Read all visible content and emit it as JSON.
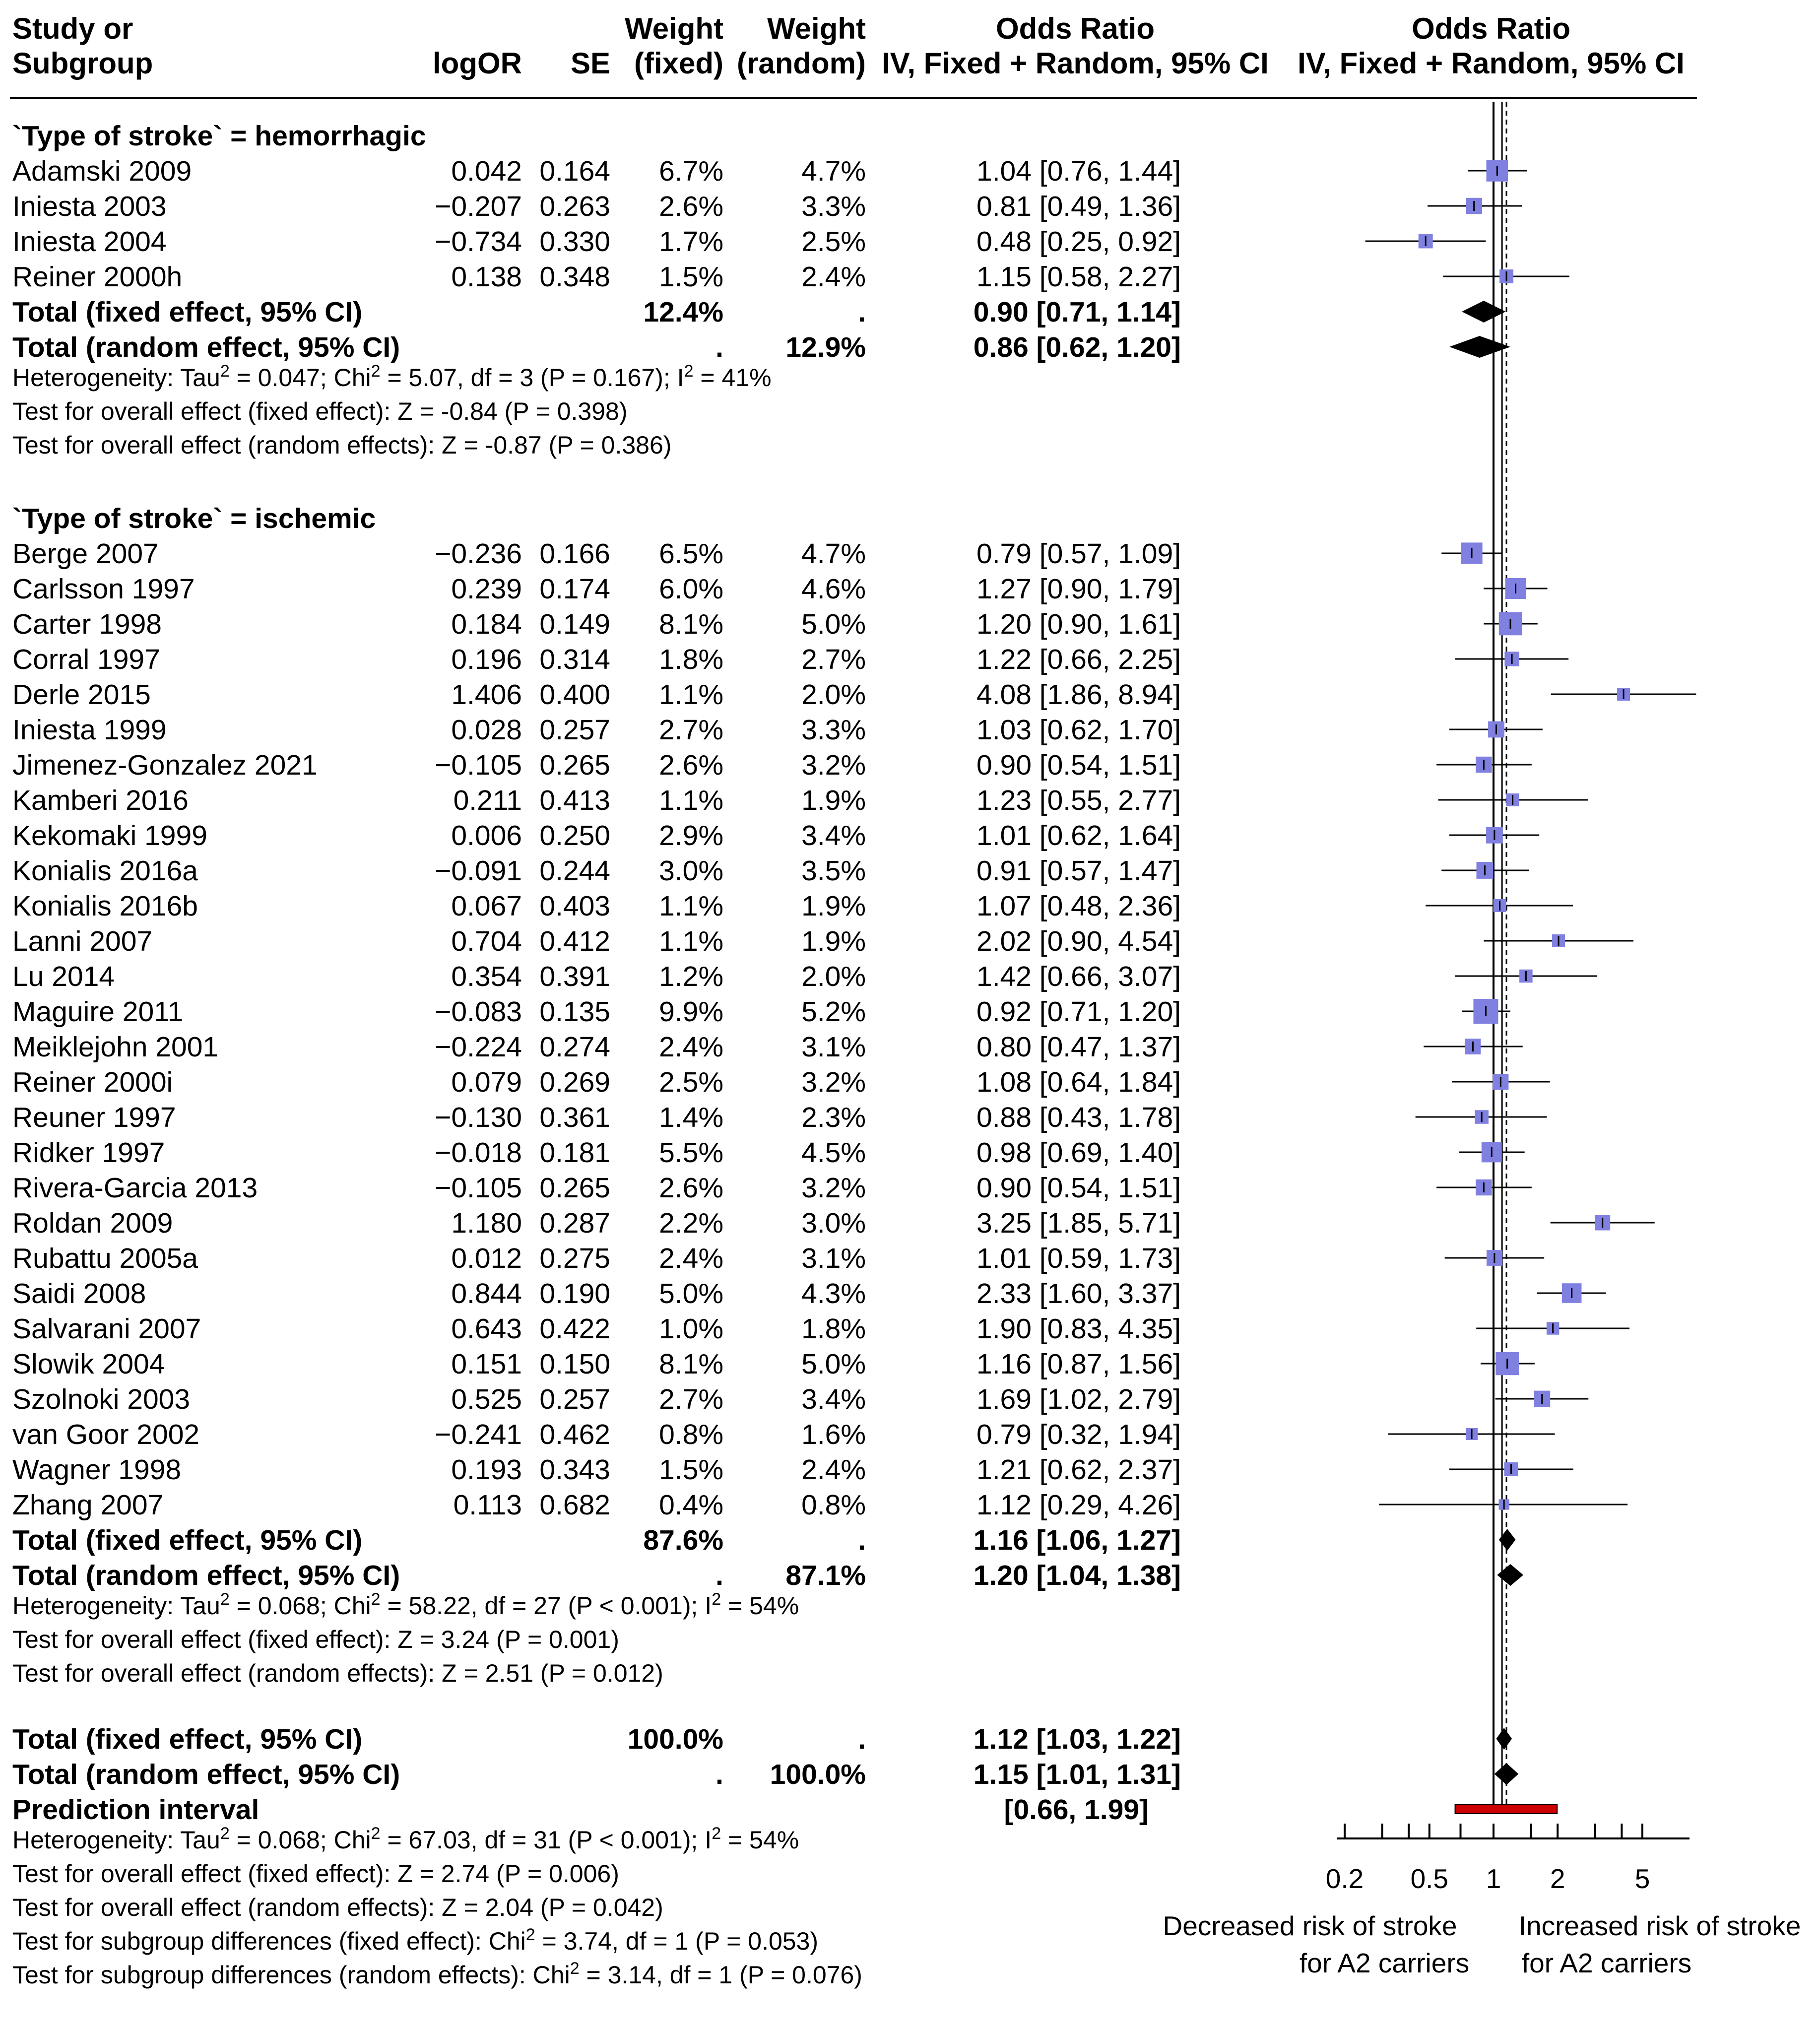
{
  "chart_data": {
    "type": "forest",
    "headers": {
      "study": [
        "Study or",
        "Subgroup"
      ],
      "logor": "logOR",
      "se": "SE",
      "wfixed": [
        "Weight",
        "(fixed)"
      ],
      "wrandom": [
        "Weight",
        "(random)"
      ],
      "or": [
        "Odds Ratio",
        "IV, Fixed + Random, 95% CI"
      ],
      "plot": [
        "Odds Ratio",
        "IV, Fixed + Random, 95% CI"
      ]
    },
    "subgroups": [
      {
        "title": "`Type of stroke` = hemorrhagic",
        "studies": [
          {
            "name": "Adamski 2009",
            "logor": "0.042",
            "se": "0.164",
            "wfixed": "6.7%",
            "wrandom": "4.7%",
            "ci": "1.04 [0.76, 1.44]",
            "or": 1.04,
            "lo": 0.76,
            "hi": 1.44,
            "w": 6.7
          },
          {
            "name": "Iniesta 2003",
            "logor": "−0.207",
            "se": "0.263",
            "wfixed": "2.6%",
            "wrandom": "3.3%",
            "ci": "0.81 [0.49, 1.36]",
            "or": 0.81,
            "lo": 0.49,
            "hi": 1.36,
            "w": 2.6
          },
          {
            "name": "Iniesta 2004",
            "logor": "−0.734",
            "se": "0.330",
            "wfixed": "1.7%",
            "wrandom": "2.5%",
            "ci": "0.48 [0.25, 0.92]",
            "or": 0.48,
            "lo": 0.25,
            "hi": 0.92,
            "w": 1.7
          },
          {
            "name": "Reiner 2000h",
            "logor": "0.138",
            "se": "0.348",
            "wfixed": "1.5%",
            "wrandom": "2.4%",
            "ci": "1.15 [0.58, 2.27]",
            "or": 1.15,
            "lo": 0.58,
            "hi": 2.27,
            "w": 1.5
          }
        ],
        "fixed": {
          "label": "Total (fixed effect, 95% CI)",
          "wfixed": "12.4%",
          "wrandom": ".",
          "ci": "0.90 [0.71, 1.14]",
          "or": 0.9,
          "lo": 0.71,
          "hi": 1.14
        },
        "random": {
          "label": "Total (random effect, 95% CI)",
          "wfixed": ".",
          "wrandom": "12.9%",
          "ci": "0.86 [0.62, 1.20]",
          "or": 0.86,
          "lo": 0.62,
          "hi": 1.2
        },
        "stats": [
          {
            "parts": [
              [
                "Heterogeneity: Tau",
                false
              ],
              [
                "2",
                true
              ],
              [
                " = 0.047; Chi",
                false
              ],
              [
                "2",
                true
              ],
              [
                " = 5.07, df = 3 (P = 0.167); I",
                false
              ],
              [
                "2",
                true
              ],
              [
                " = 41%",
                false
              ]
            ]
          },
          {
            "parts": [
              [
                "Test for overall effect (fixed effect): Z = -0.84 (P = 0.398)",
                false
              ]
            ]
          },
          {
            "parts": [
              [
                "Test for overall effect (random effects): Z = -0.87 (P = 0.386)",
                false
              ]
            ]
          }
        ]
      },
      {
        "title": "`Type of stroke` = ischemic",
        "studies": [
          {
            "name": "Berge 2007",
            "logor": "−0.236",
            "se": "0.166",
            "wfixed": "6.5%",
            "wrandom": "4.7%",
            "ci": "0.79 [0.57, 1.09]",
            "or": 0.79,
            "lo": 0.57,
            "hi": 1.09,
            "w": 6.5
          },
          {
            "name": "Carlsson 1997",
            "logor": "0.239",
            "se": "0.174",
            "wfixed": "6.0%",
            "wrandom": "4.6%",
            "ci": "1.27 [0.90, 1.79]",
            "or": 1.27,
            "lo": 0.9,
            "hi": 1.79,
            "w": 6.0
          },
          {
            "name": "Carter 1998",
            "logor": "0.184",
            "se": "0.149",
            "wfixed": "8.1%",
            "wrandom": "5.0%",
            "ci": "1.20 [0.90, 1.61]",
            "or": 1.2,
            "lo": 0.9,
            "hi": 1.61,
            "w": 8.1
          },
          {
            "name": "Corral 1997",
            "logor": "0.196",
            "se": "0.314",
            "wfixed": "1.8%",
            "wrandom": "2.7%",
            "ci": "1.22 [0.66, 2.25]",
            "or": 1.22,
            "lo": 0.66,
            "hi": 2.25,
            "w": 1.8
          },
          {
            "name": "Derle 2015",
            "logor": "1.406",
            "se": "0.400",
            "wfixed": "1.1%",
            "wrandom": "2.0%",
            "ci": "4.08 [1.86, 8.94]",
            "or": 4.08,
            "lo": 1.86,
            "hi": 8.94,
            "w": 1.1
          },
          {
            "name": "Iniesta 1999",
            "logor": "0.028",
            "se": "0.257",
            "wfixed": "2.7%",
            "wrandom": "3.3%",
            "ci": "1.03 [0.62, 1.70]",
            "or": 1.03,
            "lo": 0.62,
            "hi": 1.7,
            "w": 2.7
          },
          {
            "name": "Jimenez-Gonzalez 2021",
            "logor": "−0.105",
            "se": "0.265",
            "wfixed": "2.6%",
            "wrandom": "3.2%",
            "ci": "0.90 [0.54, 1.51]",
            "or": 0.9,
            "lo": 0.54,
            "hi": 1.51,
            "w": 2.6
          },
          {
            "name": "Kamberi 2016",
            "logor": "0.211",
            "se": "0.413",
            "wfixed": "1.1%",
            "wrandom": "1.9%",
            "ci": "1.23 [0.55, 2.77]",
            "or": 1.23,
            "lo": 0.55,
            "hi": 2.77,
            "w": 1.1
          },
          {
            "name": "Kekomaki 1999",
            "logor": "0.006",
            "se": "0.250",
            "wfixed": "2.9%",
            "wrandom": "3.4%",
            "ci": "1.01 [0.62, 1.64]",
            "or": 1.01,
            "lo": 0.62,
            "hi": 1.64,
            "w": 2.9
          },
          {
            "name": "Konialis 2016a",
            "logor": "−0.091",
            "se": "0.244",
            "wfixed": "3.0%",
            "wrandom": "3.5%",
            "ci": "0.91 [0.57, 1.47]",
            "or": 0.91,
            "lo": 0.57,
            "hi": 1.47,
            "w": 3.0
          },
          {
            "name": "Konialis 2016b",
            "logor": "0.067",
            "se": "0.403",
            "wfixed": "1.1%",
            "wrandom": "1.9%",
            "ci": "1.07 [0.48, 2.36]",
            "or": 1.07,
            "lo": 0.48,
            "hi": 2.36,
            "w": 1.1
          },
          {
            "name": "Lanni 2007",
            "logor": "0.704",
            "se": "0.412",
            "wfixed": "1.1%",
            "wrandom": "1.9%",
            "ci": "2.02 [0.90, 4.54]",
            "or": 2.02,
            "lo": 0.9,
            "hi": 4.54,
            "w": 1.1
          },
          {
            "name": "Lu 2014",
            "logor": "0.354",
            "se": "0.391",
            "wfixed": "1.2%",
            "wrandom": "2.0%",
            "ci": "1.42 [0.66, 3.07]",
            "or": 1.42,
            "lo": 0.66,
            "hi": 3.07,
            "w": 1.2
          },
          {
            "name": "Maguire 2011",
            "logor": "−0.083",
            "se": "0.135",
            "wfixed": "9.9%",
            "wrandom": "5.2%",
            "ci": "0.92 [0.71, 1.20]",
            "or": 0.92,
            "lo": 0.71,
            "hi": 1.2,
            "w": 9.9
          },
          {
            "name": "Meiklejohn 2001",
            "logor": "−0.224",
            "se": "0.274",
            "wfixed": "2.4%",
            "wrandom": "3.1%",
            "ci": "0.80 [0.47, 1.37]",
            "or": 0.8,
            "lo": 0.47,
            "hi": 1.37,
            "w": 2.4
          },
          {
            "name": "Reiner 2000i",
            "logor": "0.079",
            "se": "0.269",
            "wfixed": "2.5%",
            "wrandom": "3.2%",
            "ci": "1.08 [0.64, 1.84]",
            "or": 1.08,
            "lo": 0.64,
            "hi": 1.84,
            "w": 2.5
          },
          {
            "name": "Reuner 1997",
            "logor": "−0.130",
            "se": "0.361",
            "wfixed": "1.4%",
            "wrandom": "2.3%",
            "ci": "0.88 [0.43, 1.78]",
            "or": 0.88,
            "lo": 0.43,
            "hi": 1.78,
            "w": 1.4
          },
          {
            "name": "Ridker 1997",
            "logor": "−0.018",
            "se": "0.181",
            "wfixed": "5.5%",
            "wrandom": "4.5%",
            "ci": "0.98 [0.69, 1.40]",
            "or": 0.98,
            "lo": 0.69,
            "hi": 1.4,
            "w": 5.5
          },
          {
            "name": "Rivera-Garcia 2013",
            "logor": "−0.105",
            "se": "0.265",
            "wfixed": "2.6%",
            "wrandom": "3.2%",
            "ci": "0.90 [0.54, 1.51]",
            "or": 0.9,
            "lo": 0.54,
            "hi": 1.51,
            "w": 2.6
          },
          {
            "name": "Roldan 2009",
            "logor": "1.180",
            "se": "0.287",
            "wfixed": "2.2%",
            "wrandom": "3.0%",
            "ci": "3.25 [1.85, 5.71]",
            "or": 3.25,
            "lo": 1.85,
            "hi": 5.71,
            "w": 2.2
          },
          {
            "name": "Rubattu 2005a",
            "logor": "0.012",
            "se": "0.275",
            "wfixed": "2.4%",
            "wrandom": "3.1%",
            "ci": "1.01 [0.59, 1.73]",
            "or": 1.01,
            "lo": 0.59,
            "hi": 1.73,
            "w": 2.4
          },
          {
            "name": "Saidi 2008",
            "logor": "0.844",
            "se": "0.190",
            "wfixed": "5.0%",
            "wrandom": "4.3%",
            "ci": "2.33 [1.60, 3.37]",
            "or": 2.33,
            "lo": 1.6,
            "hi": 3.37,
            "w": 5.0
          },
          {
            "name": "Salvarani 2007",
            "logor": "0.643",
            "se": "0.422",
            "wfixed": "1.0%",
            "wrandom": "1.8%",
            "ci": "1.90 [0.83, 4.35]",
            "or": 1.9,
            "lo": 0.83,
            "hi": 4.35,
            "w": 1.0
          },
          {
            "name": "Slowik 2004",
            "logor": "0.151",
            "se": "0.150",
            "wfixed": "8.1%",
            "wrandom": "5.0%",
            "ci": "1.16 [0.87, 1.56]",
            "or": 1.16,
            "lo": 0.87,
            "hi": 1.56,
            "w": 8.1
          },
          {
            "name": "Szolnoki 2003",
            "logor": "0.525",
            "se": "0.257",
            "wfixed": "2.7%",
            "wrandom": "3.4%",
            "ci": "1.69 [1.02, 2.79]",
            "or": 1.69,
            "lo": 1.02,
            "hi": 2.79,
            "w": 2.7
          },
          {
            "name": "van Goor 2002",
            "logor": "−0.241",
            "se": "0.462",
            "wfixed": "0.8%",
            "wrandom": "1.6%",
            "ci": "0.79 [0.32, 1.94]",
            "or": 0.79,
            "lo": 0.32,
            "hi": 1.94,
            "w": 0.8
          },
          {
            "name": "Wagner 1998",
            "logor": "0.193",
            "se": "0.343",
            "wfixed": "1.5%",
            "wrandom": "2.4%",
            "ci": "1.21 [0.62, 2.37]",
            "or": 1.21,
            "lo": 0.62,
            "hi": 2.37,
            "w": 1.5
          },
          {
            "name": "Zhang 2007",
            "logor": "0.113",
            "se": "0.682",
            "wfixed": "0.4%",
            "wrandom": "0.8%",
            "ci": "1.12 [0.29, 4.26]",
            "or": 1.12,
            "lo": 0.29,
            "hi": 4.26,
            "w": 0.4
          }
        ],
        "fixed": {
          "label": "Total (fixed effect, 95% CI)",
          "wfixed": "87.6%",
          "wrandom": ".",
          "ci": "1.16 [1.06, 1.27]",
          "or": 1.16,
          "lo": 1.06,
          "hi": 1.27
        },
        "random": {
          "label": "Total (random effect, 95% CI)",
          "wfixed": ".",
          "wrandom": "87.1%",
          "ci": "1.20 [1.04, 1.38]",
          "or": 1.2,
          "lo": 1.04,
          "hi": 1.38
        },
        "stats": [
          {
            "parts": [
              [
                "Heterogeneity: Tau",
                false
              ],
              [
                "2",
                true
              ],
              [
                " = 0.068; Chi",
                false
              ],
              [
                "2",
                true
              ],
              [
                " = 58.22, df = 27 (P < 0.001); I",
                false
              ],
              [
                "2",
                true
              ],
              [
                " = 54%",
                false
              ]
            ]
          },
          {
            "parts": [
              [
                "Test for overall effect (fixed effect): Z = 3.24 (P = 0.001)",
                false
              ]
            ]
          },
          {
            "parts": [
              [
                "Test for overall effect (random effects): Z = 2.51 (P = 0.012)",
                false
              ]
            ]
          }
        ]
      }
    ],
    "overall": {
      "fixed": {
        "label": "Total (fixed effect, 95% CI)",
        "wfixed": "100.0%",
        "wrandom": ".",
        "ci": "1.12 [1.03, 1.22]",
        "or": 1.12,
        "lo": 1.03,
        "hi": 1.22
      },
      "random": {
        "label": "Total (random effect, 95% CI)",
        "wfixed": ".",
        "wrandom": "100.0%",
        "ci": "1.15 [1.01, 1.31]",
        "or": 1.15,
        "lo": 1.01,
        "hi": 1.31
      },
      "prediction": {
        "label": "Prediction interval",
        "ci": "[0.66, 1.99]",
        "lo": 0.66,
        "hi": 1.99
      },
      "stats": [
        {
          "parts": [
            [
              "Heterogeneity: Tau",
              false
            ],
            [
              "2",
              true
            ],
            [
              " = 0.068; Chi",
              false
            ],
            [
              "2",
              true
            ],
            [
              " = 67.03, df = 31 (P < 0.001); I",
              false
            ],
            [
              "2",
              true
            ],
            [
              " = 54%",
              false
            ]
          ]
        },
        {
          "parts": [
            [
              "Test for overall effect (fixed effect): Z = 2.74 (P = 0.006)",
              false
            ]
          ]
        },
        {
          "parts": [
            [
              "Test for overall effect (random effects): Z = 2.04 (P = 0.042)",
              false
            ]
          ]
        },
        {
          "parts": [
            [
              "Test for subgroup differences (fixed effect): Chi",
              false
            ],
            [
              "2",
              true
            ],
            [
              " = 3.74, df = 1 (P = 0.053)",
              false
            ]
          ]
        },
        {
          "parts": [
            [
              "Test for subgroup differences (random effects): Chi",
              false
            ],
            [
              "2",
              true
            ],
            [
              " = 3.14, df = 1 (P = 0.076)",
              false
            ]
          ]
        }
      ]
    },
    "axis": {
      "scale": "log",
      "ticks": [
        0.2,
        0.5,
        1,
        2,
        5
      ],
      "tick_labels": [
        "0.2",
        "0.5",
        "1",
        "2",
        "5"
      ],
      "xlim": [
        0.2,
        8.94
      ],
      "left_label": [
        "Decreased risk of stroke",
        "for A2 carriers"
      ],
      "right_label": [
        "Increased risk of stroke",
        "for A2 carriers"
      ],
      "reference_line": 1
    },
    "colors": {
      "square": "#8080e0",
      "diamond": "#000000",
      "prediction": "#cc0000",
      "lines": "#000000"
    }
  }
}
